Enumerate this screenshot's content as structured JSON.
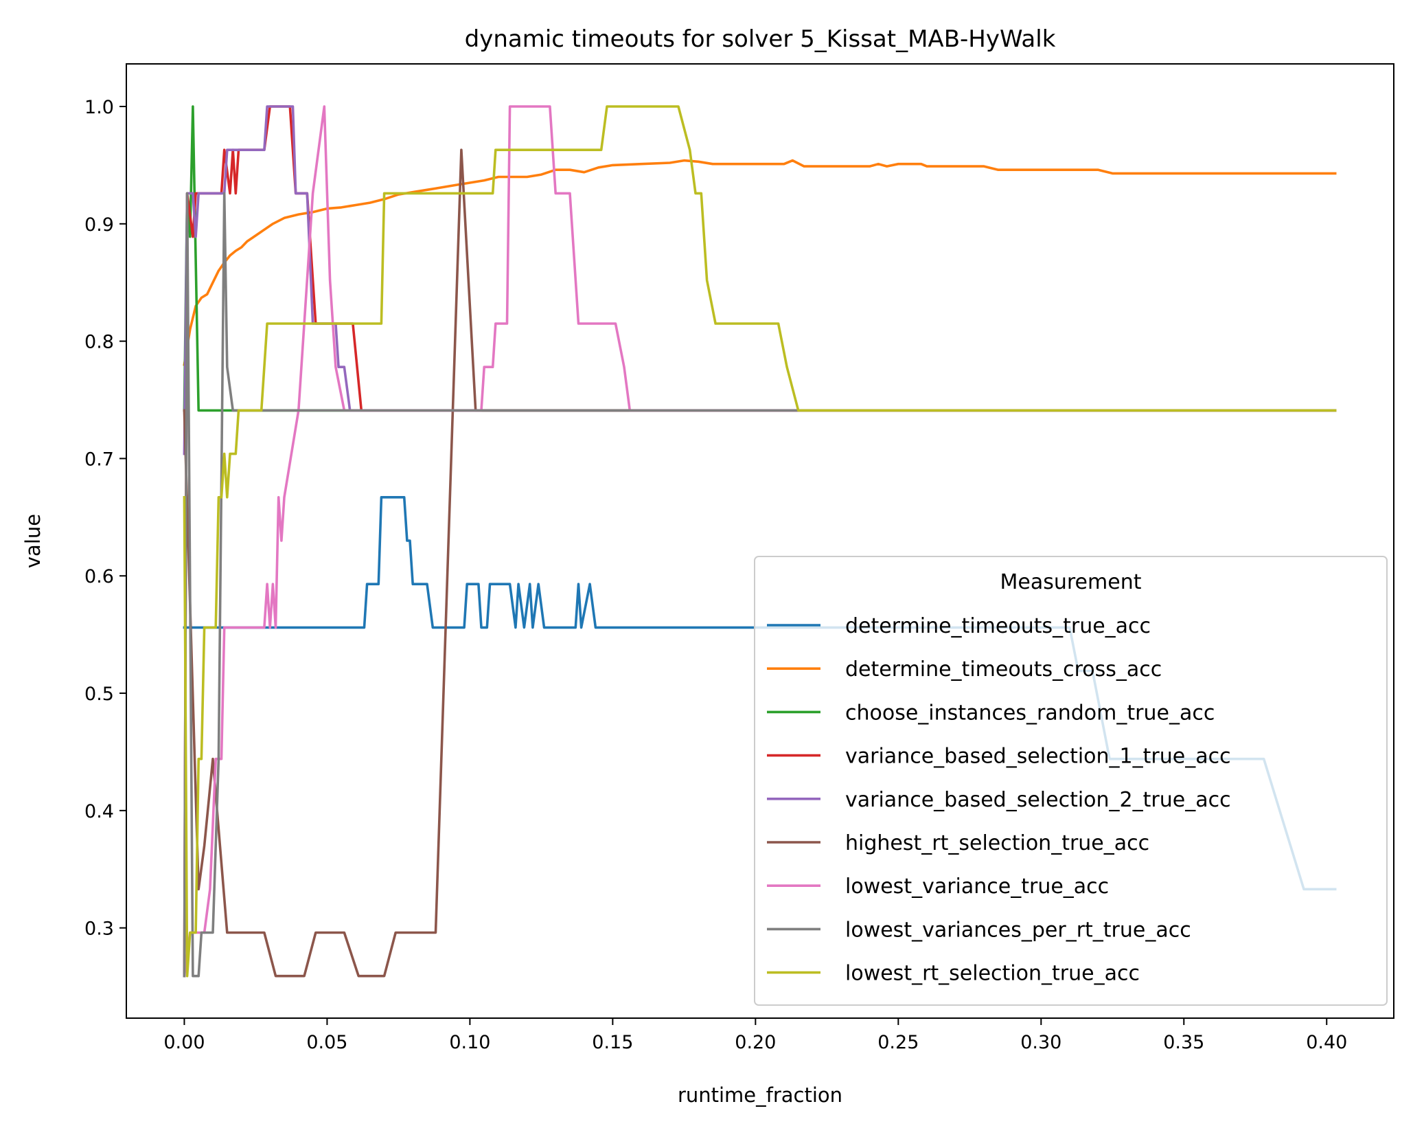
{
  "chart_data": {
    "type": "line",
    "title": "dynamic timeouts for solver 5_Kissat_MAB-HyWalk",
    "xlabel": "runtime_fraction",
    "ylabel": "value",
    "xlim": [
      -0.0203,
      0.4235
    ],
    "ylim": [
      0.2231,
      1.0363
    ],
    "xticks": [
      0.0,
      0.05,
      0.1,
      0.15,
      0.2,
      0.25,
      0.3,
      0.35,
      0.4
    ],
    "xtick_labels": [
      "0.00",
      "0.05",
      "0.10",
      "0.15",
      "0.20",
      "0.25",
      "0.30",
      "0.35",
      "0.40"
    ],
    "yticks": [
      0.3,
      0.4,
      0.5,
      0.6,
      0.7,
      0.8,
      0.9,
      1.0
    ],
    "ytick_labels": [
      "0.3",
      "0.4",
      "0.5",
      "0.6",
      "0.7",
      "0.8",
      "0.9",
      "1.0"
    ],
    "grid": false,
    "legend": {
      "title": "Measurement",
      "placement": "lower right"
    },
    "series": [
      {
        "name": "determine_timeouts_true_acc",
        "color": "#1f77b4",
        "points": [
          [
            0.0,
            0.556
          ],
          [
            0.063,
            0.556
          ],
          [
            0.064,
            0.593
          ],
          [
            0.068,
            0.593
          ],
          [
            0.069,
            0.667
          ],
          [
            0.077,
            0.667
          ],
          [
            0.078,
            0.63
          ],
          [
            0.079,
            0.63
          ],
          [
            0.08,
            0.593
          ],
          [
            0.085,
            0.593
          ],
          [
            0.087,
            0.556
          ],
          [
            0.098,
            0.556
          ],
          [
            0.099,
            0.593
          ],
          [
            0.103,
            0.593
          ],
          [
            0.104,
            0.556
          ],
          [
            0.106,
            0.556
          ],
          [
            0.107,
            0.593
          ],
          [
            0.114,
            0.593
          ],
          [
            0.116,
            0.556
          ],
          [
            0.117,
            0.593
          ],
          [
            0.119,
            0.556
          ],
          [
            0.121,
            0.593
          ],
          [
            0.122,
            0.556
          ],
          [
            0.124,
            0.593
          ],
          [
            0.126,
            0.556
          ],
          [
            0.137,
            0.556
          ],
          [
            0.138,
            0.593
          ],
          [
            0.139,
            0.556
          ],
          [
            0.142,
            0.593
          ],
          [
            0.144,
            0.556
          ],
          [
            0.31,
            0.556
          ],
          [
            0.313,
            0.519
          ],
          [
            0.318,
            0.519
          ],
          [
            0.324,
            0.444
          ],
          [
            0.378,
            0.444
          ],
          [
            0.392,
            0.333
          ],
          [
            0.403,
            0.333
          ]
        ]
      },
      {
        "name": "determine_timeouts_cross_acc",
        "color": "#ff7f0e",
        "points": [
          [
            0.0,
            0.78
          ],
          [
            0.002,
            0.81
          ],
          [
            0.004,
            0.83
          ],
          [
            0.006,
            0.837
          ],
          [
            0.008,
            0.84
          ],
          [
            0.01,
            0.85
          ],
          [
            0.012,
            0.86
          ],
          [
            0.014,
            0.867
          ],
          [
            0.016,
            0.873
          ],
          [
            0.018,
            0.877
          ],
          [
            0.02,
            0.88
          ],
          [
            0.022,
            0.885
          ],
          [
            0.025,
            0.89
          ],
          [
            0.028,
            0.895
          ],
          [
            0.031,
            0.9
          ],
          [
            0.035,
            0.905
          ],
          [
            0.04,
            0.908
          ],
          [
            0.045,
            0.91
          ],
          [
            0.05,
            0.913
          ],
          [
            0.055,
            0.914
          ],
          [
            0.06,
            0.916
          ],
          [
            0.065,
            0.918
          ],
          [
            0.07,
            0.921
          ],
          [
            0.075,
            0.925
          ],
          [
            0.08,
            0.927
          ],
          [
            0.085,
            0.929
          ],
          [
            0.09,
            0.931
          ],
          [
            0.095,
            0.933
          ],
          [
            0.1,
            0.935
          ],
          [
            0.105,
            0.937
          ],
          [
            0.11,
            0.94
          ],
          [
            0.12,
            0.94
          ],
          [
            0.125,
            0.942
          ],
          [
            0.13,
            0.946
          ],
          [
            0.135,
            0.946
          ],
          [
            0.14,
            0.944
          ],
          [
            0.145,
            0.948
          ],
          [
            0.15,
            0.95
          ],
          [
            0.16,
            0.951
          ],
          [
            0.17,
            0.952
          ],
          [
            0.175,
            0.954
          ],
          [
            0.18,
            0.953
          ],
          [
            0.185,
            0.951
          ],
          [
            0.21,
            0.951
          ],
          [
            0.213,
            0.954
          ],
          [
            0.217,
            0.949
          ],
          [
            0.24,
            0.949
          ],
          [
            0.243,
            0.951
          ],
          [
            0.246,
            0.949
          ],
          [
            0.25,
            0.951
          ],
          [
            0.258,
            0.951
          ],
          [
            0.26,
            0.949
          ],
          [
            0.28,
            0.949
          ],
          [
            0.285,
            0.946
          ],
          [
            0.32,
            0.946
          ],
          [
            0.325,
            0.943
          ],
          [
            0.403,
            0.943
          ]
        ]
      },
      {
        "name": "choose_instances_random_true_acc",
        "color": "#2ca02c",
        "points": [
          [
            0.0,
            0.741
          ],
          [
            0.001,
            0.926
          ],
          [
            0.002,
            0.889
          ],
          [
            0.003,
            1.0
          ],
          [
            0.005,
            0.741
          ],
          [
            0.403,
            0.741
          ]
        ]
      },
      {
        "name": "variance_based_selection_1_true_acc",
        "color": "#d62728",
        "points": [
          [
            0.0,
            0.259
          ],
          [
            0.001,
            0.926
          ],
          [
            0.003,
            0.889
          ],
          [
            0.004,
            0.926
          ],
          [
            0.013,
            0.926
          ],
          [
            0.014,
            0.963
          ],
          [
            0.016,
            0.926
          ],
          [
            0.017,
            0.963
          ],
          [
            0.018,
            0.926
          ],
          [
            0.019,
            0.963
          ],
          [
            0.028,
            0.963
          ],
          [
            0.03,
            1.0
          ],
          [
            0.037,
            1.0
          ],
          [
            0.039,
            0.926
          ],
          [
            0.043,
            0.926
          ],
          [
            0.046,
            0.815
          ],
          [
            0.059,
            0.815
          ],
          [
            0.062,
            0.741
          ],
          [
            0.403,
            0.741
          ]
        ]
      },
      {
        "name": "variance_based_selection_2_true_acc",
        "color": "#9467bd",
        "points": [
          [
            0.0,
            0.704
          ],
          [
            0.001,
            0.926
          ],
          [
            0.003,
            0.926
          ],
          [
            0.004,
            0.889
          ],
          [
            0.005,
            0.926
          ],
          [
            0.014,
            0.926
          ],
          [
            0.015,
            0.963
          ],
          [
            0.028,
            0.963
          ],
          [
            0.029,
            1.0
          ],
          [
            0.038,
            1.0
          ],
          [
            0.039,
            0.926
          ],
          [
            0.043,
            0.926
          ],
          [
            0.045,
            0.815
          ],
          [
            0.053,
            0.815
          ],
          [
            0.054,
            0.778
          ],
          [
            0.056,
            0.778
          ],
          [
            0.058,
            0.741
          ],
          [
            0.403,
            0.741
          ]
        ]
      },
      {
        "name": "highest_rt_selection_true_acc",
        "color": "#8c564b",
        "points": [
          [
            0.0,
            0.741
          ],
          [
            0.005,
            0.333
          ],
          [
            0.007,
            0.37
          ],
          [
            0.01,
            0.444
          ],
          [
            0.015,
            0.296
          ],
          [
            0.028,
            0.296
          ],
          [
            0.032,
            0.259
          ],
          [
            0.042,
            0.259
          ],
          [
            0.046,
            0.296
          ],
          [
            0.056,
            0.296
          ],
          [
            0.061,
            0.259
          ],
          [
            0.07,
            0.259
          ],
          [
            0.074,
            0.296
          ],
          [
            0.088,
            0.296
          ],
          [
            0.097,
            0.963
          ],
          [
            0.102,
            0.741
          ],
          [
            0.403,
            0.741
          ]
        ]
      },
      {
        "name": "lowest_variance_true_acc",
        "color": "#e377c2",
        "points": [
          [
            0.0,
            0.259
          ],
          [
            0.002,
            0.296
          ],
          [
            0.007,
            0.296
          ],
          [
            0.009,
            0.333
          ],
          [
            0.011,
            0.444
          ],
          [
            0.013,
            0.444
          ],
          [
            0.014,
            0.556
          ],
          [
            0.028,
            0.556
          ],
          [
            0.029,
            0.593
          ],
          [
            0.03,
            0.556
          ],
          [
            0.031,
            0.593
          ],
          [
            0.032,
            0.556
          ],
          [
            0.033,
            0.667
          ],
          [
            0.034,
            0.63
          ],
          [
            0.035,
            0.667
          ],
          [
            0.04,
            0.741
          ],
          [
            0.045,
            0.926
          ],
          [
            0.049,
            1.0
          ],
          [
            0.051,
            0.852
          ],
          [
            0.053,
            0.778
          ],
          [
            0.056,
            0.741
          ],
          [
            0.104,
            0.741
          ],
          [
            0.105,
            0.778
          ],
          [
            0.108,
            0.778
          ],
          [
            0.109,
            0.815
          ],
          [
            0.113,
            0.815
          ],
          [
            0.114,
            1.0
          ],
          [
            0.128,
            1.0
          ],
          [
            0.13,
            0.926
          ],
          [
            0.135,
            0.926
          ],
          [
            0.138,
            0.815
          ],
          [
            0.151,
            0.815
          ],
          [
            0.154,
            0.778
          ],
          [
            0.156,
            0.741
          ],
          [
            0.403,
            0.741
          ]
        ]
      },
      {
        "name": "lowest_variances_per_rt_true_acc",
        "color": "#7f7f7f",
        "points": [
          [
            0.0,
            0.259
          ],
          [
            0.001,
            0.926
          ],
          [
            0.003,
            0.259
          ],
          [
            0.005,
            0.259
          ],
          [
            0.006,
            0.296
          ],
          [
            0.01,
            0.296
          ],
          [
            0.012,
            0.444
          ],
          [
            0.014,
            0.926
          ],
          [
            0.015,
            0.778
          ],
          [
            0.017,
            0.741
          ],
          [
            0.403,
            0.741
          ]
        ]
      },
      {
        "name": "lowest_rt_selection_true_acc",
        "color": "#bcbd22",
        "points": [
          [
            0.0,
            0.667
          ],
          [
            0.001,
            0.259
          ],
          [
            0.002,
            0.296
          ],
          [
            0.004,
            0.296
          ],
          [
            0.005,
            0.444
          ],
          [
            0.006,
            0.444
          ],
          [
            0.007,
            0.556
          ],
          [
            0.011,
            0.556
          ],
          [
            0.012,
            0.667
          ],
          [
            0.013,
            0.667
          ],
          [
            0.014,
            0.704
          ],
          [
            0.015,
            0.667
          ],
          [
            0.016,
            0.704
          ],
          [
            0.018,
            0.704
          ],
          [
            0.019,
            0.741
          ],
          [
            0.027,
            0.741
          ],
          [
            0.028,
            0.778
          ],
          [
            0.029,
            0.815
          ],
          [
            0.069,
            0.815
          ],
          [
            0.07,
            0.926
          ],
          [
            0.108,
            0.926
          ],
          [
            0.109,
            0.963
          ],
          [
            0.146,
            0.963
          ],
          [
            0.148,
            1.0
          ],
          [
            0.173,
            1.0
          ],
          [
            0.177,
            0.963
          ],
          [
            0.179,
            0.926
          ],
          [
            0.181,
            0.926
          ],
          [
            0.183,
            0.852
          ],
          [
            0.186,
            0.815
          ],
          [
            0.208,
            0.815
          ],
          [
            0.211,
            0.778
          ],
          [
            0.215,
            0.741
          ],
          [
            0.403,
            0.741
          ]
        ]
      }
    ]
  }
}
